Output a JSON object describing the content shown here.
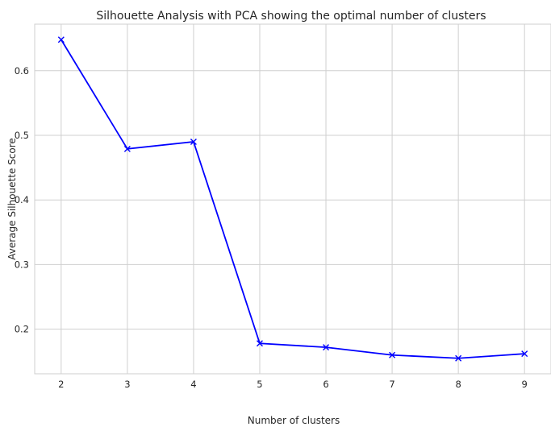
{
  "chart_data": {
    "type": "line",
    "title": "Silhouette Analysis with PCA showing the optimal number of clusters",
    "xlabel": "Number of clusters",
    "ylabel": "Average Silhouette Score",
    "x": [
      2,
      3,
      4,
      5,
      6,
      7,
      8,
      9
    ],
    "series": [
      {
        "values": [
          0.648,
          0.479,
          0.49,
          0.178,
          0.172,
          0.16,
          0.155,
          0.162
        ],
        "color": "#0000ff",
        "marker": "x"
      }
    ],
    "xlim": [
      1.6,
      9.4
    ],
    "ylim": [
      0.131,
      0.672
    ],
    "xticks": [
      2,
      3,
      4,
      5,
      6,
      7,
      8,
      9
    ],
    "yticks": [
      0.2,
      0.3,
      0.4,
      0.5,
      0.6
    ],
    "ytick_labels": [
      "0.2",
      "0.3",
      "0.4",
      "0.5",
      "0.6"
    ],
    "grid": true,
    "style": "seaborn-whitegrid"
  }
}
